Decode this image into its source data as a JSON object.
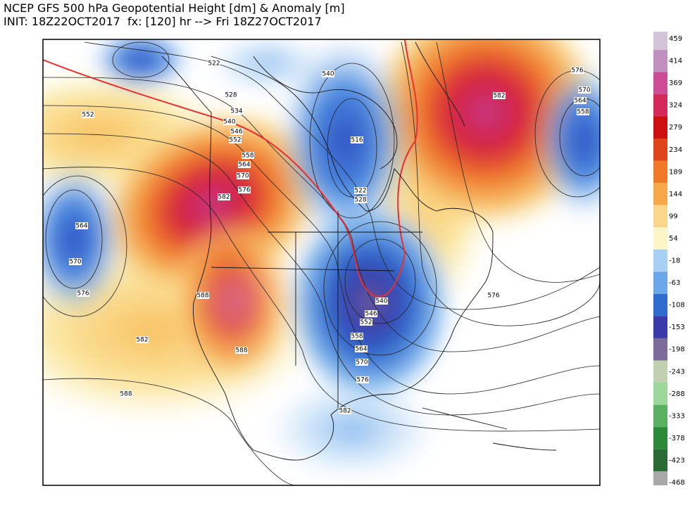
{
  "title": "NCEP GFS 500 hPa Geopotential Height [dm] & Anomaly [m]",
  "subtitle": "INIT: 18Z22OCT2017  fx: [120] hr --> Fri 18Z27OCT2017",
  "colorbar": {
    "labels": [
      459,
      414,
      369,
      324,
      279,
      234,
      189,
      144,
      99,
      54,
      -18,
      -63,
      -108,
      -153,
      -198,
      -243,
      -288,
      -333,
      -378,
      -423,
      -468
    ],
    "colors": [
      "#d4c4d8",
      "#c090c0",
      "#cc4c98",
      "#d42a5a",
      "#cc1010",
      "#e0441a",
      "#f07a28",
      "#f6a848",
      "#fad68a",
      "#fbf5c8",
      "#a8d0f4",
      "#6aa8ea",
      "#2e6cd0",
      "#3a3aa8",
      "#7c6c9c",
      "#c0d0b0",
      "#9cd89c",
      "#5ab062",
      "#2a8a3a",
      "#2a6a34",
      "#a8a8a8"
    ]
  },
  "contour_labels": [
    522,
    528,
    534,
    540,
    546,
    552,
    558,
    564,
    570,
    576,
    582,
    552,
    564,
    570,
    576,
    582,
    588,
    588,
    588,
    516,
    522,
    528,
    540,
    546,
    540,
    552,
    558,
    564,
    570,
    576,
    582,
    576,
    582,
    576,
    570,
    564,
    558
  ]
}
